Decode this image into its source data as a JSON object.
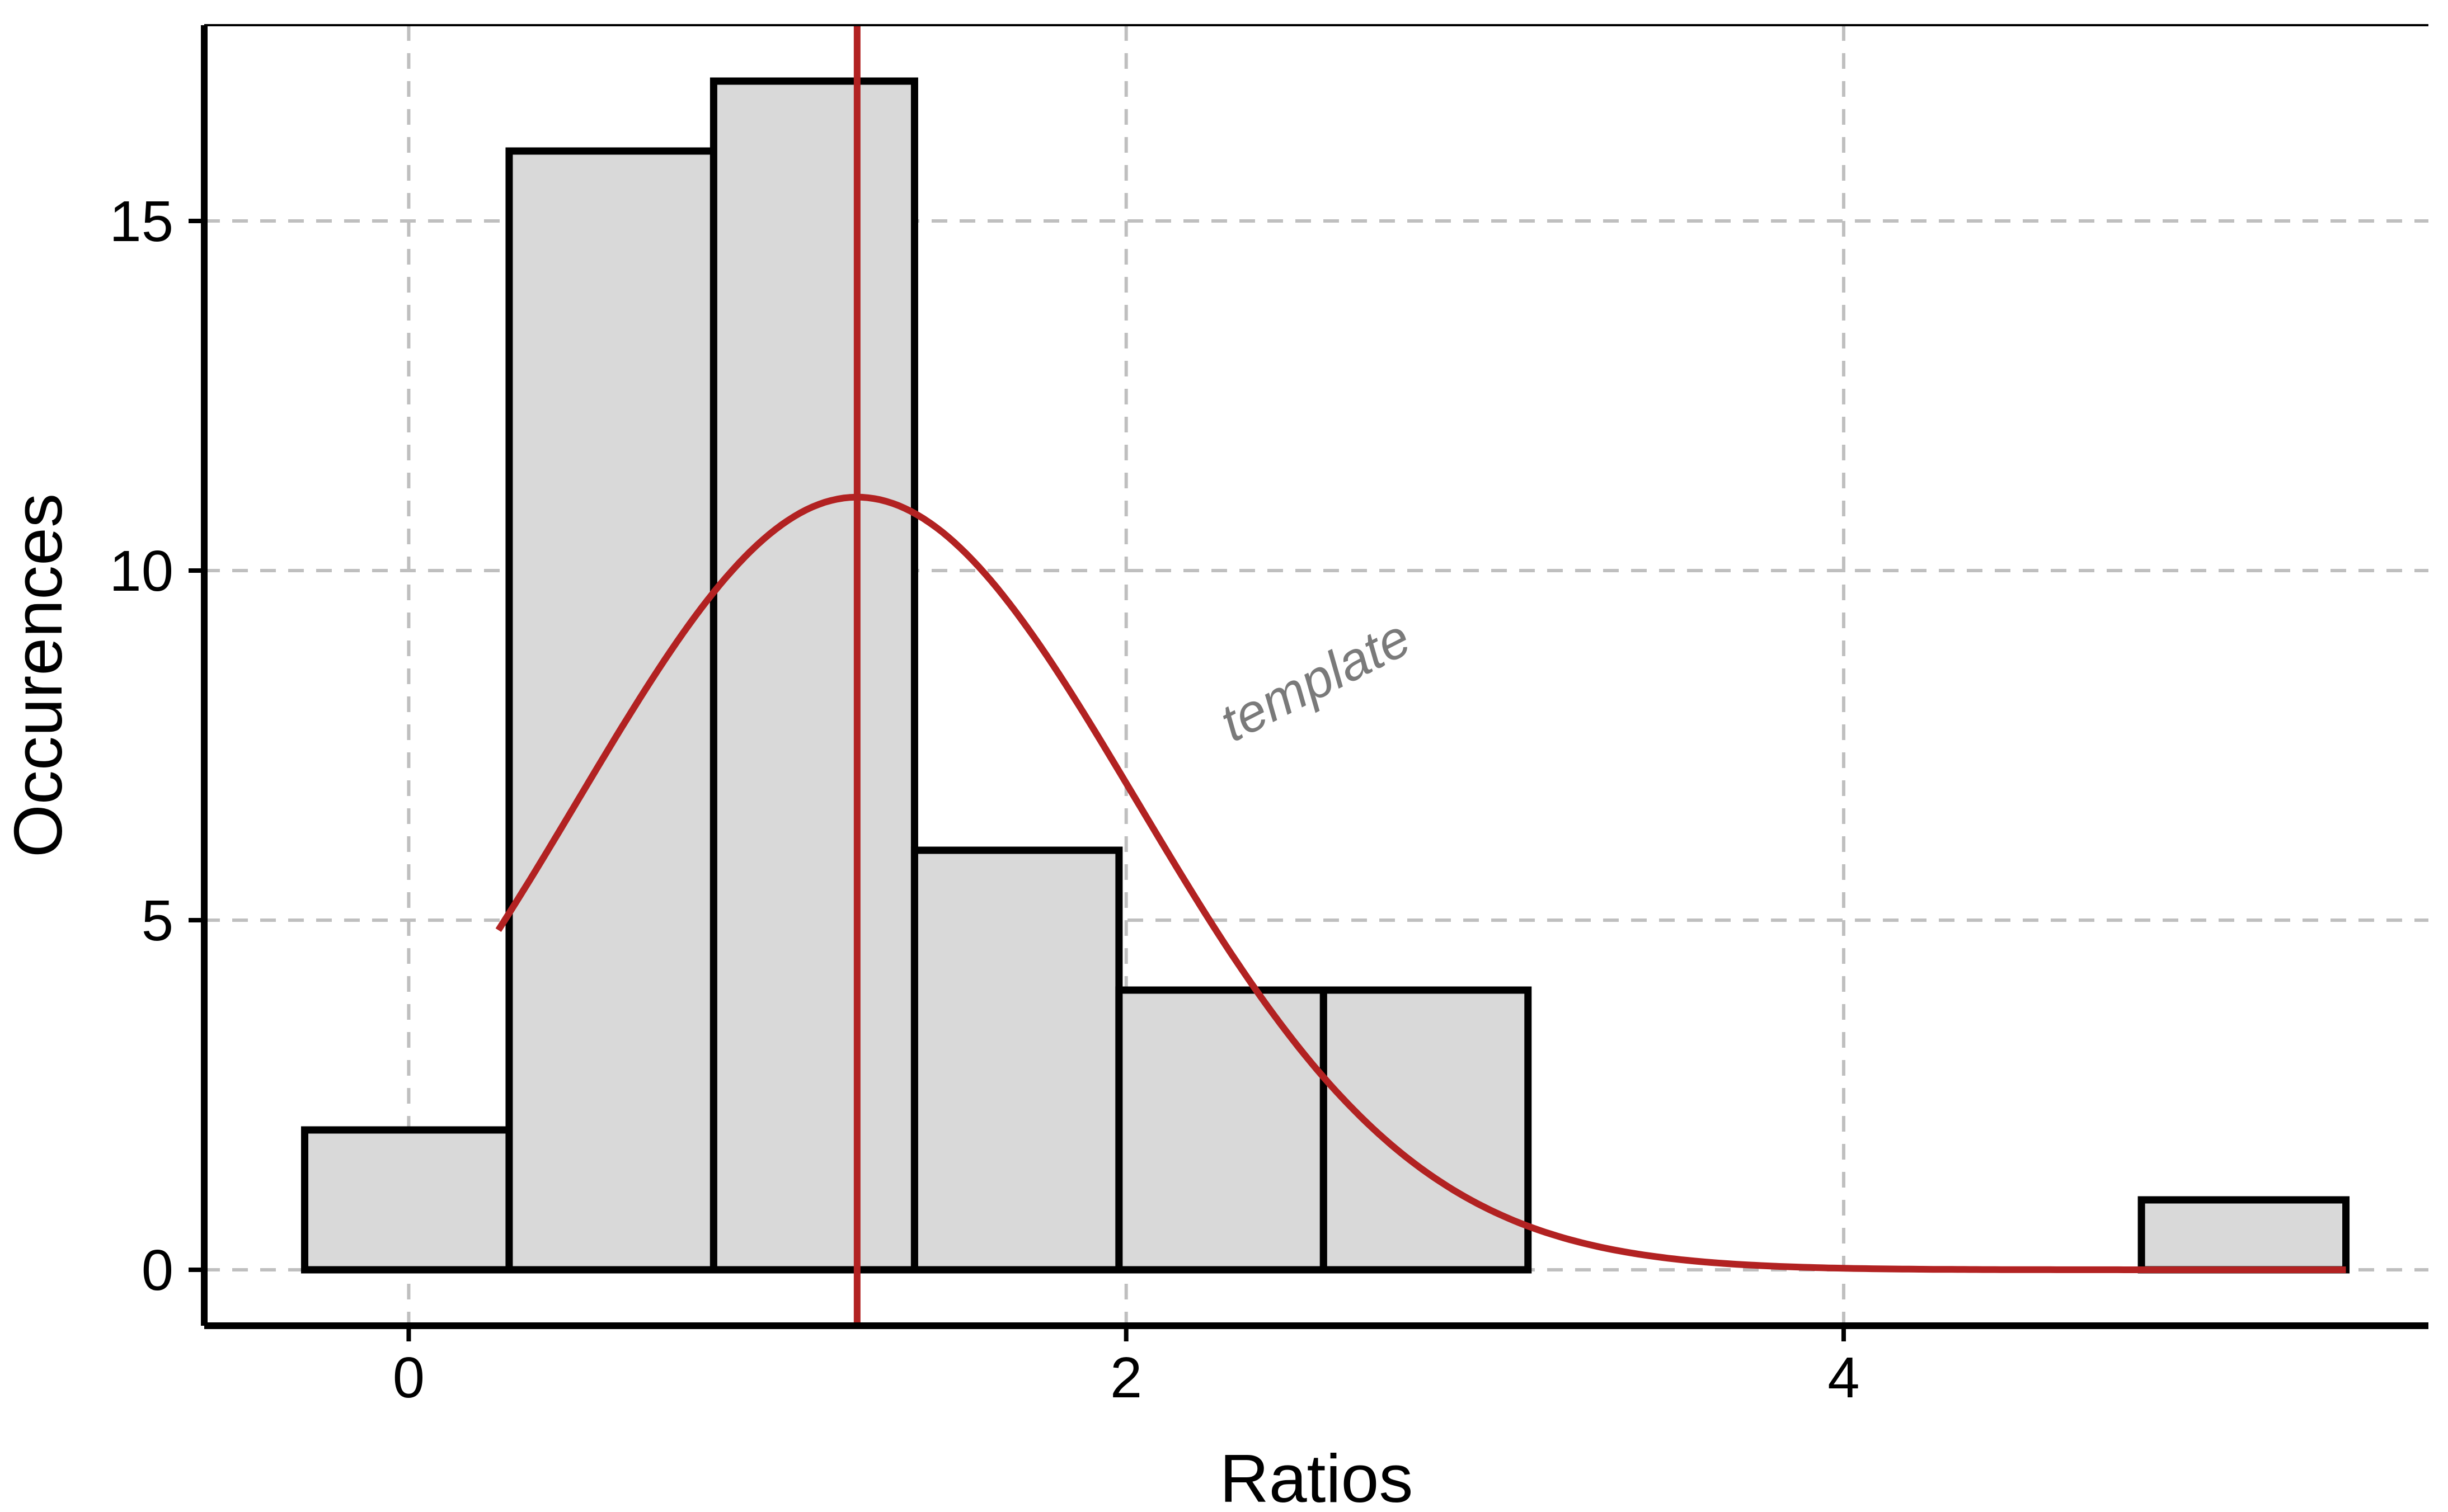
{
  "chart_data": {
    "type": "bar",
    "title": "",
    "xlabel": "Ratios",
    "ylabel": "Occurences",
    "xlim": [
      -0.57,
      5.63
    ],
    "ylim": [
      -0.8,
      17.8
    ],
    "x_ticks": [
      0,
      2,
      4
    ],
    "y_ticks": [
      0,
      5,
      10,
      15
    ],
    "grid": true,
    "grid_style": "dashed",
    "bins": [
      {
        "x0": -0.29,
        "x1": 0.28,
        "count": 2
      },
      {
        "x0": 0.28,
        "x1": 0.85,
        "count": 16
      },
      {
        "x0": 0.85,
        "x1": 1.41,
        "count": 17
      },
      {
        "x0": 1.41,
        "x1": 1.98,
        "count": 6
      },
      {
        "x0": 1.98,
        "x1": 2.55,
        "count": 4
      },
      {
        "x0": 2.55,
        "x1": 3.12,
        "count": 4
      },
      {
        "x0": 3.12,
        "x1": 3.69,
        "count": 0
      },
      {
        "x0": 3.69,
        "x1": 4.26,
        "count": 0
      },
      {
        "x0": 4.26,
        "x1": 4.83,
        "count": 0
      },
      {
        "x0": 4.83,
        "x1": 5.4,
        "count": 1
      }
    ],
    "vertical_line": {
      "x": 1.25
    },
    "curve": {
      "type": "normal",
      "mean": 1.25,
      "sd": 0.78,
      "peak": 11.05,
      "x_range": [
        0.25,
        5.4
      ]
    },
    "annotation": {
      "text": "template",
      "x": 2.55,
      "y": 8.2,
      "rotation": -27
    },
    "colors": {
      "bar_fill": "#d9d9d9",
      "bar_stroke": "#000000",
      "line": "#b22222",
      "grid": "#bfbfbf",
      "annotation": "#7a7a7a"
    }
  }
}
